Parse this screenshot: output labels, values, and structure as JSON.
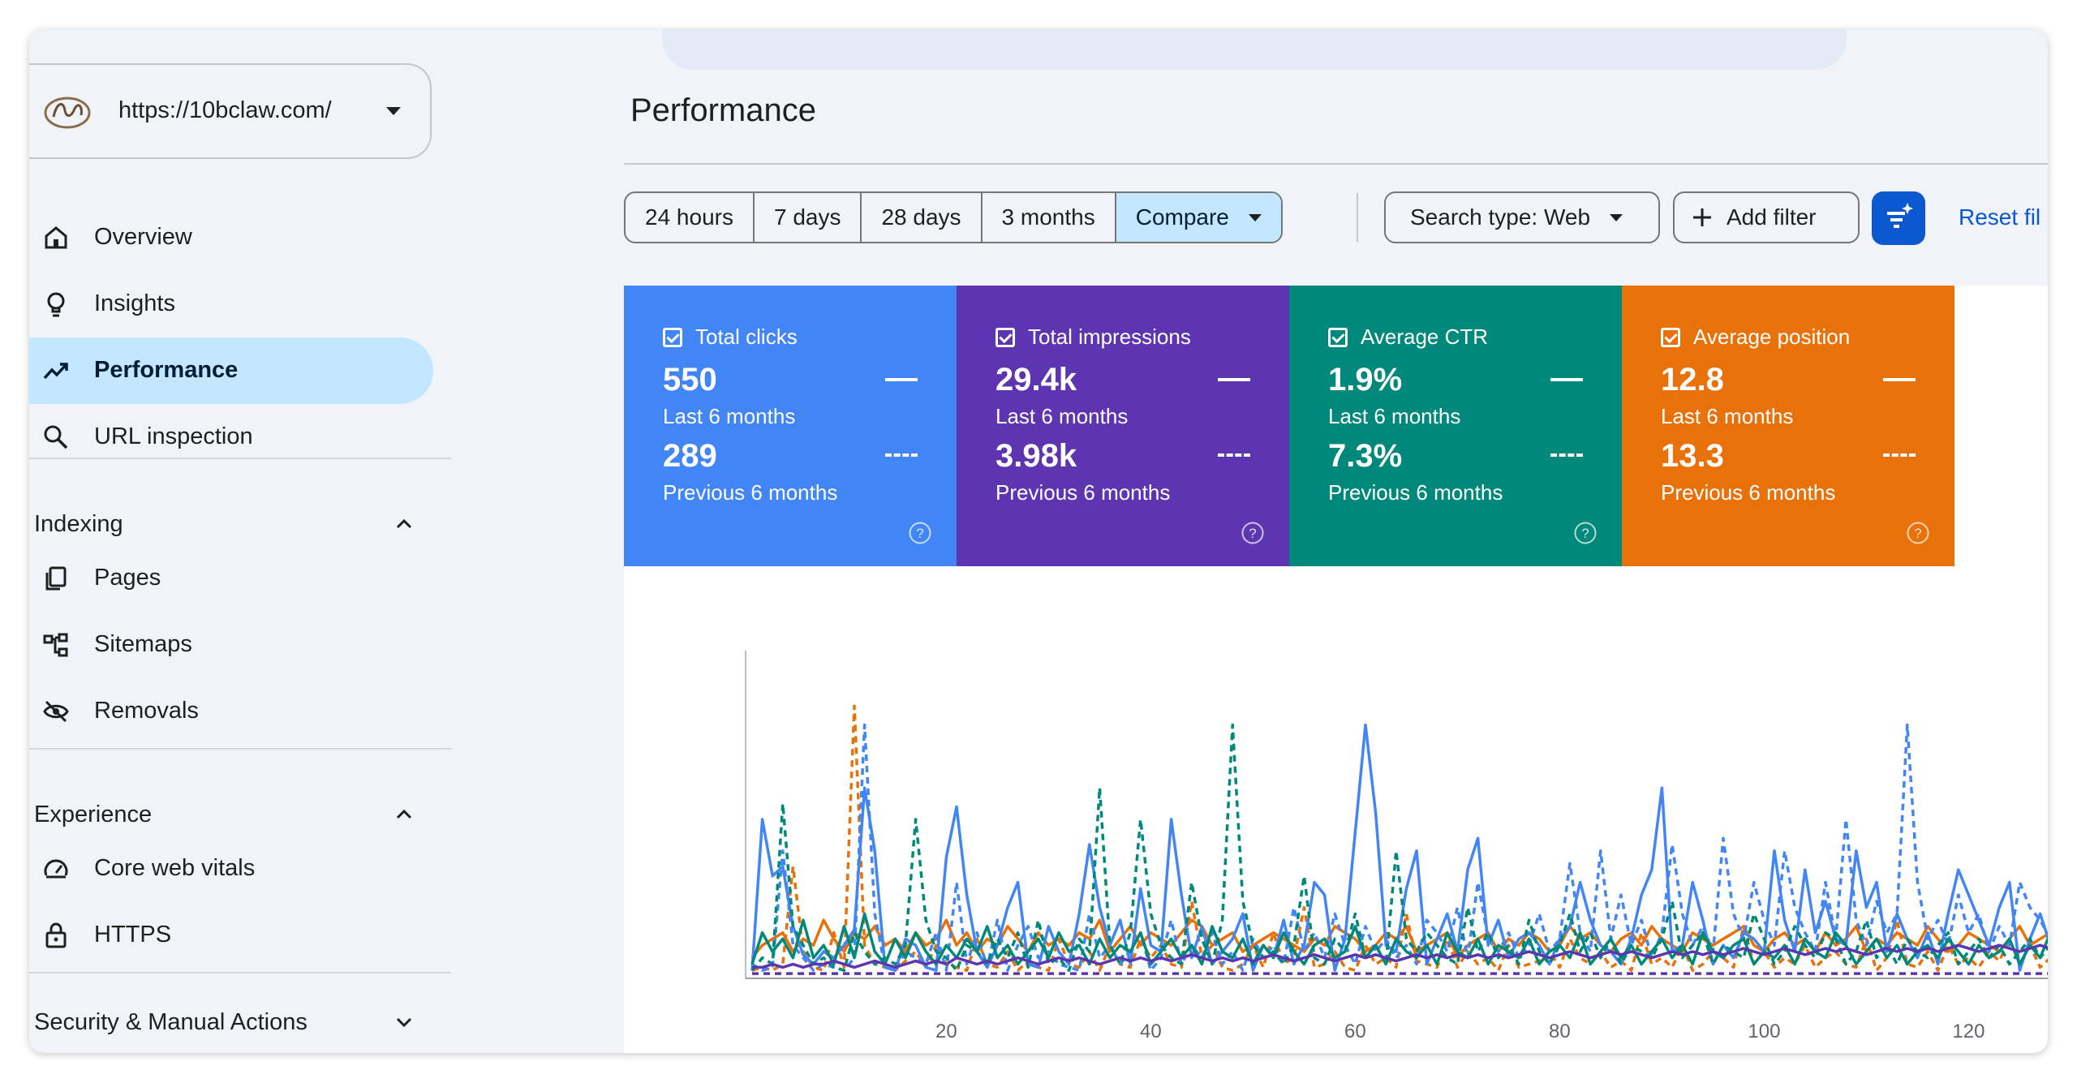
{
  "sidebar": {
    "site_url": "https://10bclaw.com/",
    "nav": [
      {
        "label": "Overview",
        "icon": "home-icon"
      },
      {
        "label": "Insights",
        "icon": "lightbulb-icon"
      },
      {
        "label": "Performance",
        "icon": "trending-up-icon",
        "active": true
      },
      {
        "label": "URL inspection",
        "icon": "search-icon"
      }
    ],
    "indexing": {
      "title": "Indexing",
      "items": [
        {
          "label": "Pages",
          "icon": "pages-icon"
        },
        {
          "label": "Sitemaps",
          "icon": "sitemap-icon"
        },
        {
          "label": "Removals",
          "icon": "eye-off-icon"
        }
      ]
    },
    "experience": {
      "title": "Experience",
      "items": [
        {
          "label": "Core web vitals",
          "icon": "gauge-icon"
        },
        {
          "label": "HTTPS",
          "icon": "lock-icon"
        }
      ]
    },
    "security": {
      "title": "Security & Manual Actions"
    }
  },
  "main": {
    "title": "Performance",
    "ranges": [
      "24 hours",
      "7 days",
      "28 days",
      "3 months",
      "Compare"
    ],
    "selected_range": "Compare",
    "search_type": "Search type: Web",
    "add_filter": "Add filter",
    "reset": "Reset fil"
  },
  "metrics": [
    {
      "title": "Total clicks",
      "current": "550",
      "current_label": "Last 6 months",
      "previous": "289",
      "previous_label": "Previous 6 months",
      "color": "#4285f4"
    },
    {
      "title": "Total impressions",
      "current": "29.4k",
      "current_label": "Last 6 months",
      "previous": "3.98k",
      "previous_label": "Previous 6 months",
      "color": "#5e35b1"
    },
    {
      "title": "Average CTR",
      "current": "1.9%",
      "current_label": "Last 6 months",
      "previous": "7.3%",
      "previous_label": "Previous 6 months",
      "color": "#00897b"
    },
    {
      "title": "Average position",
      "current": "12.8",
      "current_label": "Last 6 months",
      "previous": "13.3",
      "previous_label": "Previous 6 months",
      "color": "#e8710a"
    }
  ],
  "chart_data": {
    "type": "line",
    "x_ticks": [
      20,
      40,
      60,
      80,
      100,
      120
    ],
    "xlim": [
      1,
      131
    ],
    "series": [
      {
        "color": "#e8710a",
        "style": "solid",
        "values": [
          6,
          10,
          12,
          14,
          8,
          12,
          10,
          18,
          12,
          8,
          14,
          12,
          16,
          10,
          12,
          8,
          14,
          10,
          12,
          18,
          10,
          14,
          8,
          12,
          10,
          16,
          12,
          8,
          14,
          10,
          12,
          10,
          14,
          12,
          18,
          8,
          12,
          16,
          10,
          14,
          12,
          10,
          14,
          18,
          16,
          10,
          12,
          14,
          8,
          10,
          12,
          14,
          12,
          10,
          8,
          12,
          10,
          16,
          14,
          12,
          8,
          10,
          14,
          12,
          16,
          8,
          10,
          12,
          14,
          6,
          10,
          12,
          14,
          8,
          12,
          10,
          14,
          12,
          8,
          10,
          16,
          12,
          14,
          10,
          8,
          12,
          14,
          10,
          16,
          12,
          10,
          8,
          14,
          12,
          10,
          12,
          14,
          16,
          10,
          8,
          12,
          14,
          10,
          12,
          8,
          14,
          10,
          12,
          16,
          8,
          12,
          10,
          14,
          12,
          10,
          16,
          12,
          8,
          10,
          14,
          12,
          10,
          8,
          12,
          16,
          10,
          12,
          14,
          8,
          12,
          14
        ]
      },
      {
        "color": "#e8710a",
        "style": "dashed",
        "values": [
          2,
          3,
          2,
          4,
          35,
          8,
          3,
          2,
          14,
          3,
          86,
          10,
          4,
          3,
          2,
          5,
          8,
          3,
          10,
          4,
          3,
          2,
          12,
          4,
          3,
          8,
          2,
          5,
          3,
          2,
          12,
          4,
          3,
          8,
          2,
          10,
          4,
          3,
          12,
          6,
          10,
          4,
          3,
          24,
          6,
          10,
          3,
          2,
          4,
          10,
          3,
          14,
          4,
          6,
          22,
          3,
          4,
          8,
          3,
          2,
          10,
          4,
          6,
          3,
          20,
          5,
          4,
          3,
          12,
          3,
          8,
          4,
          6,
          2,
          10,
          3,
          4,
          5,
          8,
          3,
          12,
          6,
          4,
          8,
          3,
          5,
          2,
          14,
          4,
          6,
          3,
          10,
          2,
          4,
          8,
          6,
          3,
          16,
          4,
          8,
          3,
          6,
          4,
          10,
          3,
          6,
          8,
          4,
          3,
          12,
          2,
          6,
          18,
          4,
          3,
          8,
          2,
          10,
          4,
          6,
          3,
          8,
          5,
          12,
          4,
          10,
          3,
          6,
          2,
          4,
          3
        ]
      },
      {
        "color": "#4285f4",
        "style": "solid",
        "values": [
          2,
          50,
          32,
          35,
          16,
          7,
          4,
          8,
          6,
          10,
          15,
          60,
          40,
          3,
          2,
          12,
          10,
          3,
          2,
          38,
          54,
          26,
          8,
          3,
          10,
          22,
          30,
          4,
          3,
          16,
          8,
          4,
          20,
          42,
          22,
          10,
          18,
          4,
          28,
          10,
          8,
          50,
          26,
          6,
          16,
          4,
          8,
          12,
          20,
          2,
          10,
          6,
          18,
          4,
          10,
          30,
          26,
          2,
          12,
          46,
          80,
          52,
          10,
          8,
          28,
          40,
          4,
          12,
          20,
          8,
          34,
          44,
          10,
          18,
          6,
          12,
          14,
          10,
          4,
          12,
          16,
          30,
          18,
          10,
          8,
          4,
          12,
          26,
          34,
          60,
          8,
          10,
          30,
          18,
          4,
          10,
          6,
          14,
          12,
          8,
          40,
          18,
          8,
          34,
          14,
          24,
          12,
          10,
          40,
          22,
          30,
          8,
          20,
          12,
          6,
          14,
          4,
          20,
          34,
          26,
          18,
          10,
          22,
          30,
          2,
          12,
          20,
          10,
          28,
          72,
          58
        ]
      },
      {
        "color": "#4285f4",
        "style": "dashed",
        "values": [
          4,
          2,
          3,
          40,
          10,
          6,
          2,
          4,
          3,
          2,
          6,
          80,
          20,
          3,
          2,
          8,
          6,
          4,
          14,
          2,
          30,
          4,
          14,
          3,
          18,
          2,
          10,
          16,
          6,
          8,
          4,
          3,
          2,
          20,
          6,
          10,
          4,
          8,
          14,
          2,
          6,
          18,
          4,
          10,
          6,
          14,
          4,
          8,
          2,
          12,
          6,
          10,
          4,
          22,
          8,
          14,
          6,
          20,
          10,
          4,
          16,
          8,
          12,
          6,
          10,
          4,
          18,
          14,
          8,
          22,
          6,
          30,
          12,
          8,
          14,
          6,
          10,
          20,
          8,
          12,
          36,
          14,
          8,
          40,
          12,
          26,
          10,
          18,
          6,
          14,
          42,
          20,
          10,
          16,
          8,
          44,
          20,
          12,
          30,
          18,
          10,
          40,
          22,
          14,
          8,
          30,
          12,
          50,
          18,
          10,
          24,
          14,
          20,
          80,
          30,
          12,
          18,
          10,
          26,
          14,
          20,
          8,
          16,
          10,
          30,
          22,
          18,
          12,
          8,
          14,
          20
        ]
      },
      {
        "color": "#00897b",
        "style": "solid",
        "values": [
          4,
          14,
          8,
          12,
          6,
          18,
          6,
          10,
          4,
          16,
          6,
          20,
          8,
          4,
          12,
          6,
          14,
          8,
          4,
          10,
          6,
          12,
          8,
          16,
          6,
          10,
          4,
          8,
          12,
          6,
          14,
          8,
          10,
          4,
          12,
          6,
          10,
          8,
          14,
          4,
          8,
          12,
          6,
          10,
          4,
          16,
          8,
          6,
          12,
          4,
          10,
          6,
          14,
          8,
          4,
          10,
          12,
          6,
          8,
          16,
          6,
          10,
          4,
          12,
          8,
          6,
          10,
          4,
          14,
          8,
          6,
          12,
          4,
          10,
          8,
          6,
          12,
          4,
          8,
          10,
          6,
          14,
          4,
          8,
          12,
          6,
          10,
          4,
          8,
          12,
          6,
          10,
          4,
          14,
          8,
          6,
          10,
          12,
          4,
          8,
          6,
          10,
          4,
          12,
          8,
          6,
          14,
          10,
          4,
          8,
          12,
          6,
          10,
          4,
          8,
          10,
          6,
          12,
          8,
          4,
          10,
          6,
          8,
          12,
          4,
          10,
          6,
          14,
          8,
          10,
          6
        ]
      },
      {
        "color": "#00897b",
        "style": "dashed",
        "values": [
          2,
          6,
          4,
          55,
          16,
          10,
          4,
          6,
          3,
          2,
          14,
          8,
          4,
          6,
          4,
          10,
          50,
          18,
          8,
          6,
          2,
          10,
          8,
          4,
          12,
          6,
          14,
          3,
          18,
          4,
          6,
          2,
          12,
          8,
          60,
          10,
          4,
          14,
          50,
          20,
          10,
          6,
          4,
          30,
          12,
          4,
          18,
          80,
          24,
          10,
          6,
          8,
          4,
          10,
          32,
          6,
          4,
          12,
          8,
          20,
          6,
          10,
          4,
          40,
          12,
          8,
          14,
          10,
          6,
          4,
          22,
          8,
          14,
          6,
          10,
          4,
          18,
          8,
          4,
          10,
          20,
          8,
          14,
          6,
          12,
          4,
          10,
          8,
          6,
          12,
          24,
          6,
          10,
          14,
          4,
          10,
          8,
          6,
          20,
          12,
          4,
          8,
          16,
          10,
          6,
          14,
          12,
          4,
          8,
          18,
          6,
          10,
          4,
          12,
          8,
          6,
          10,
          14,
          4,
          8,
          12,
          6,
          10,
          4,
          8,
          12,
          6,
          10,
          4,
          14,
          6
        ]
      },
      {
        "color": "#5e35b1",
        "style": "solid",
        "values": [
          3,
          3,
          4,
          3,
          4,
          3,
          4,
          4,
          5,
          4,
          3,
          4,
          5,
          4,
          3,
          4,
          5,
          4,
          5,
          4,
          6,
          5,
          4,
          5,
          4,
          5,
          6,
          5,
          4,
          5,
          6,
          5,
          6,
          5,
          4,
          5,
          6,
          5,
          6,
          5,
          6,
          5,
          6,
          7,
          6,
          5,
          6,
          5,
          6,
          5,
          6,
          7,
          6,
          5,
          6,
          7,
          6,
          5,
          6,
          7,
          6,
          7,
          6,
          5,
          6,
          7,
          6,
          7,
          6,
          7,
          6,
          7,
          6,
          7,
          6,
          7,
          8,
          7,
          6,
          7,
          8,
          7,
          6,
          7,
          8,
          7,
          8,
          7,
          6,
          7,
          8,
          7,
          8,
          7,
          8,
          7,
          8,
          9,
          8,
          7,
          8,
          9,
          8,
          7,
          8,
          9,
          8,
          9,
          8,
          7,
          8,
          9,
          8,
          9,
          8,
          9,
          8,
          9,
          10,
          9,
          8,
          9,
          10,
          9,
          8,
          9,
          10,
          9,
          10,
          9,
          10
        ]
      },
      {
        "color": "#5e35b1",
        "style": "dashed",
        "values": [
          1,
          1,
          1,
          1,
          1,
          1,
          1,
          1,
          1,
          1,
          1,
          1,
          1,
          1,
          1,
          1,
          1,
          1,
          1,
          1,
          1,
          1,
          1,
          1,
          1,
          1,
          1,
          1,
          1,
          1,
          1,
          1,
          1,
          1,
          1,
          1,
          1,
          1,
          1,
          1,
          1,
          1,
          1,
          1,
          1,
          1,
          1,
          1,
          1,
          1,
          1,
          1,
          1,
          1,
          1,
          1,
          1,
          1,
          1,
          1,
          1,
          1,
          1,
          1,
          1,
          1,
          1,
          1,
          1,
          1,
          1,
          1,
          1,
          1,
          1,
          1,
          1,
          1,
          1,
          1,
          1,
          1,
          1,
          1,
          1,
          1,
          1,
          1,
          1,
          1,
          1,
          1,
          1,
          1,
          1,
          1,
          1,
          1,
          1,
          1,
          1,
          1,
          1,
          1,
          1,
          1,
          1,
          1,
          1,
          1,
          1,
          1,
          1,
          1,
          1,
          1,
          1,
          1,
          1,
          1,
          1,
          1,
          1,
          1,
          1,
          1,
          1,
          1,
          1,
          1,
          1
        ]
      }
    ]
  }
}
